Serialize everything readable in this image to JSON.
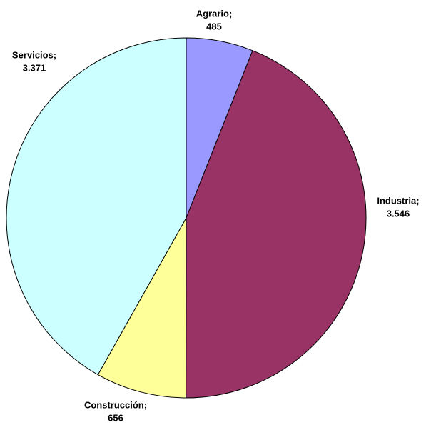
{
  "chart_data": {
    "type": "pie",
    "categories": [
      "Agrario;",
      "Industria;",
      "Construcción;",
      "Servicios;"
    ],
    "values": [
      485,
      3546,
      656,
      3371
    ],
    "value_labels": [
      "485",
      "3.546",
      "656",
      "3.371"
    ],
    "colors": [
      "#9999ff",
      "#993366",
      "#ffff99",
      "#ccffff"
    ]
  }
}
